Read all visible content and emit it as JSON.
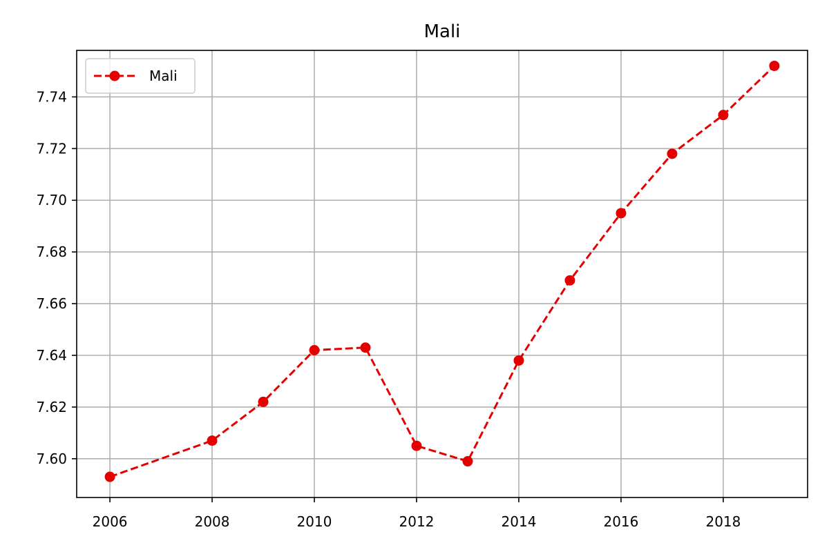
{
  "chart_data": {
    "type": "line",
    "title": "Mali",
    "xlabel": "",
    "ylabel": "",
    "x": [
      2006,
      2008,
      2009,
      2010,
      2011,
      2012,
      2013,
      2014,
      2015,
      2016,
      2017,
      2018,
      2019
    ],
    "series": [
      {
        "name": "Mali",
        "color": "#e50000",
        "line_style": "dashed",
        "marker": "circle",
        "values": [
          7.593,
          7.607,
          7.622,
          7.642,
          7.643,
          7.605,
          7.599,
          7.638,
          7.669,
          7.695,
          7.718,
          7.733,
          7.752
        ]
      }
    ],
    "xlim": [
      2005.35,
      2019.65
    ],
    "ylim": [
      7.585,
      7.758
    ],
    "x_ticks": [
      2006,
      2008,
      2010,
      2012,
      2014,
      2016,
      2018
    ],
    "x_tick_labels": [
      "2006",
      "2008",
      "2010",
      "2012",
      "2014",
      "2016",
      "2018"
    ],
    "y_ticks": [
      7.6,
      7.62,
      7.64,
      7.66,
      7.68,
      7.7,
      7.72,
      7.74
    ],
    "y_tick_labels": [
      "7.60",
      "7.62",
      "7.64",
      "7.66",
      "7.68",
      "7.70",
      "7.72",
      "7.74"
    ],
    "grid": true,
    "legend_position": "top-left"
  }
}
